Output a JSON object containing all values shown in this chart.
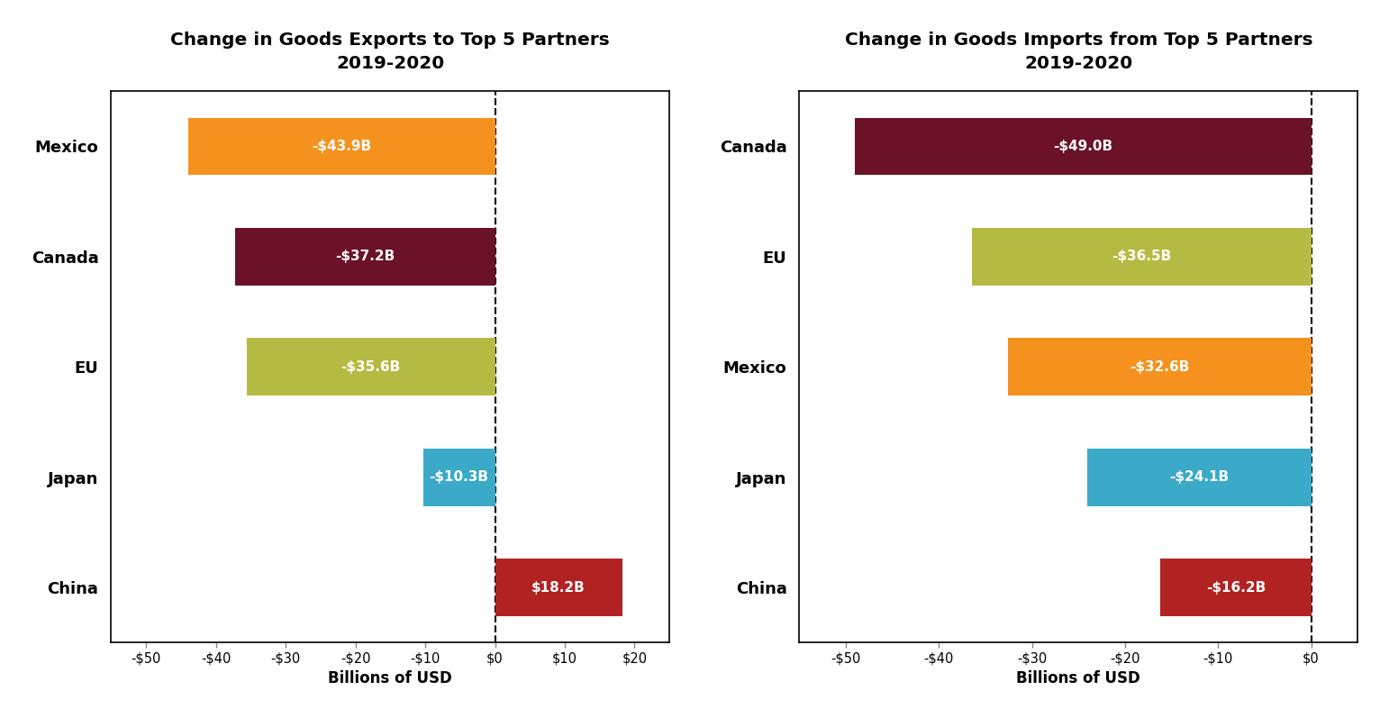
{
  "exports": {
    "title": "Change in Goods Exports to Top 5 Partners\n2019-2020",
    "categories": [
      "Mexico",
      "Canada",
      "EU",
      "Japan",
      "China"
    ],
    "values": [
      -43.9,
      -37.2,
      -35.6,
      -10.3,
      18.2
    ],
    "labels": [
      "-$43.9B",
      "-$37.2B",
      "-$35.6B",
      "-$10.3B",
      "$18.2B"
    ],
    "colors": [
      "#F5921E",
      "#6B1228",
      "#B5BB42",
      "#3aaac8",
      "#B22222"
    ],
    "xlim": [
      -55,
      25
    ],
    "xticks": [
      -50,
      -40,
      -30,
      -20,
      -10,
      0,
      10,
      20
    ],
    "xtick_labels": [
      "-$50",
      "-$40",
      "-$30",
      "-$20",
      "-$10",
      "$0",
      "$10",
      "$20"
    ],
    "xlabel": "Billions of USD"
  },
  "imports": {
    "title": "Change in Goods Imports from Top 5 Partners\n2019-2020",
    "categories": [
      "Canada",
      "EU",
      "Mexico",
      "Japan",
      "China"
    ],
    "values": [
      -49.0,
      -36.5,
      -32.6,
      -24.1,
      -16.2
    ],
    "labels": [
      "-$49.0B",
      "-$36.5B",
      "-$32.6B",
      "-$24.1B",
      "-$16.2B"
    ],
    "colors": [
      "#6B1228",
      "#B5BB42",
      "#F5921E",
      "#3aaac8",
      "#B22222"
    ],
    "xlim": [
      -55,
      5
    ],
    "xticks": [
      -50,
      -40,
      -30,
      -20,
      -10,
      0
    ],
    "xtick_labels": [
      "-$50",
      "-$40",
      "-$30",
      "-$20",
      "-$10",
      "$0"
    ],
    "xlabel": "Billions of USD"
  },
  "bar_height": 0.52,
  "background_color": "#ffffff",
  "text_color": "#ffffff",
  "border_color": "#000000",
  "label_fontsize": 11,
  "title_fontsize": 14.5,
  "tick_fontsize": 10.5,
  "xlabel_fontsize": 12,
  "ylabel_fontsize": 13
}
